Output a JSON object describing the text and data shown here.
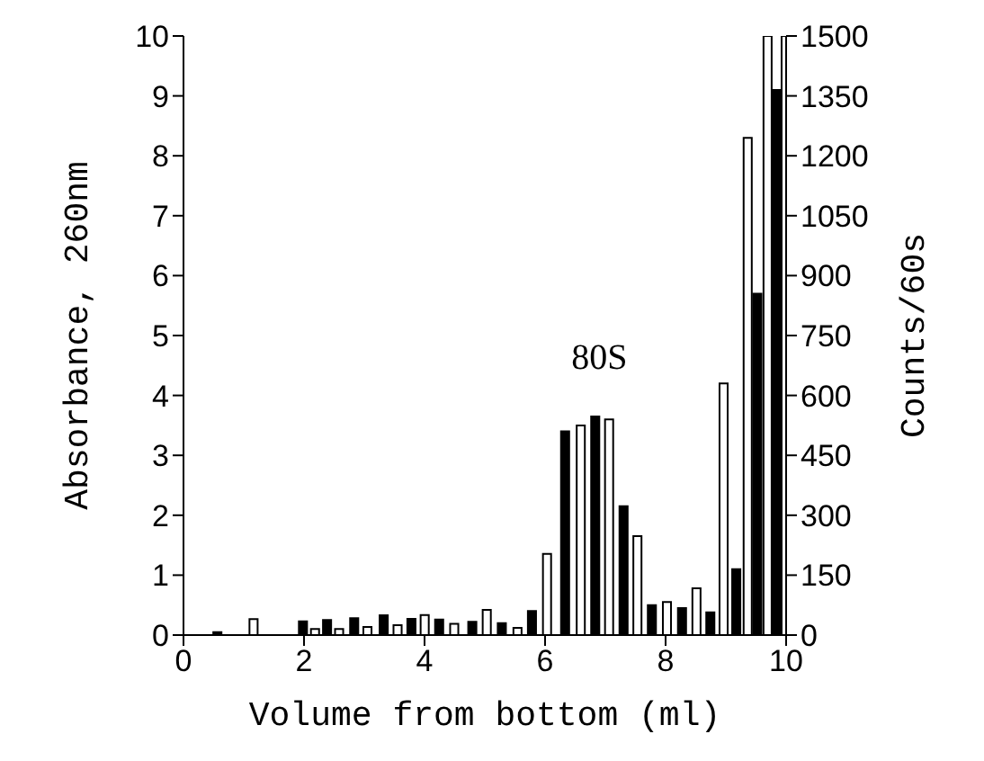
{
  "chart_data": {
    "type": "bar",
    "xlabel": "Volume from bottom (ml)",
    "ylabel": "Absorbance, 260nm",
    "y2label": "Counts/60s",
    "xlim": [
      0,
      10
    ],
    "xticks": [
      0,
      2,
      4,
      6,
      8,
      10
    ],
    "ylim": [
      0,
      10
    ],
    "yticks": [
      0,
      1,
      2,
      3,
      4,
      5,
      6,
      7,
      8,
      9,
      10
    ],
    "y2lim": [
      0,
      1500
    ],
    "y2ticks": [
      0,
      150,
      300,
      450,
      600,
      750,
      900,
      1050,
      1200,
      1350,
      1500
    ],
    "annotations": [
      "80S"
    ],
    "series": [
      {
        "color": "#000000",
        "x": [
          0.57,
          1.99,
          2.39,
          2.84,
          3.33,
          3.79,
          4.25,
          4.8,
          5.29,
          5.79,
          6.34,
          6.84,
          7.31,
          7.78,
          8.28,
          8.75,
          9.18,
          9.53,
          9.85
        ],
        "values": [
          0.05,
          0.23,
          0.25,
          0.28,
          0.33,
          0.27,
          0.26,
          0.22,
          0.2,
          0.4,
          3.4,
          3.65,
          2.15,
          0.5,
          0.45,
          0.38,
          1.1,
          5.7,
          9.1
        ]
      },
      {
        "color": "#ffffff",
        "axis": "y2",
        "x": [
          1.17,
          2.19,
          2.59,
          3.06,
          3.56,
          4.01,
          4.5,
          5.04,
          5.55,
          6.04,
          6.6,
          7.07,
          7.54,
          8.03,
          8.52,
          8.97,
          9.37,
          9.7,
          10.0
        ],
        "values": [
          40,
          15,
          15,
          20,
          25,
          50,
          28,
          63,
          18,
          203,
          525,
          540,
          248,
          83,
          117,
          630,
          1245,
          1500,
          1500
        ]
      }
    ]
  }
}
